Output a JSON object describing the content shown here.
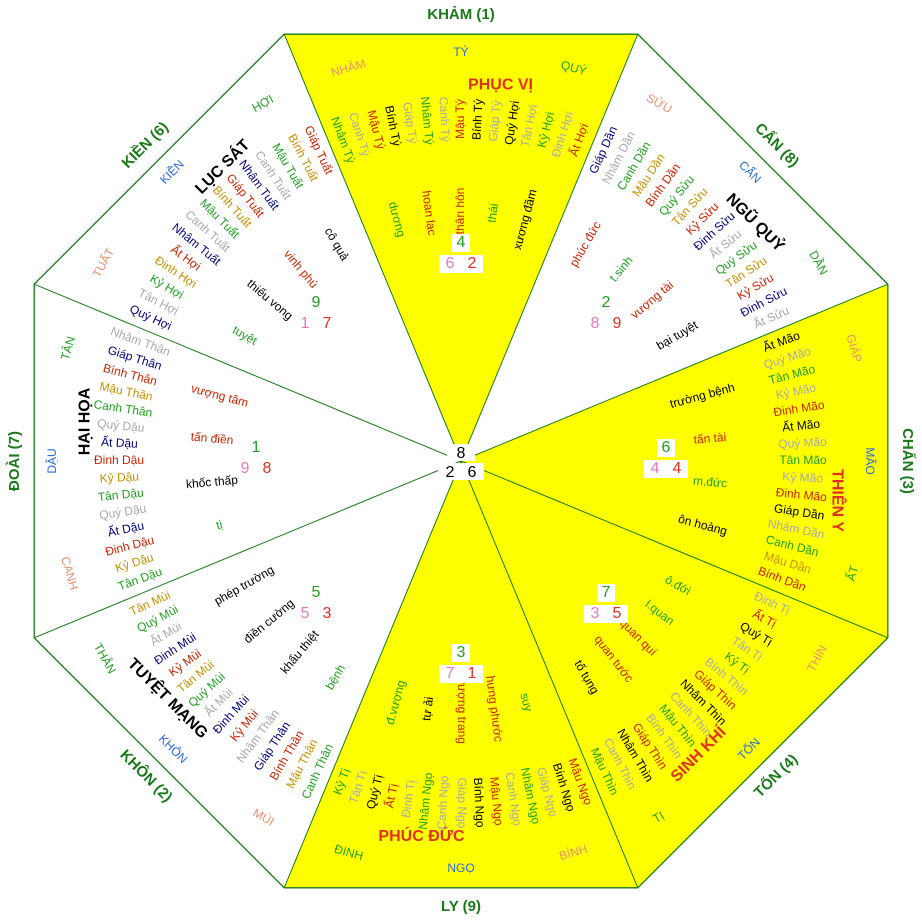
{
  "colors": {
    "yellow": "#ffff00",
    "line": "#1a7a1a",
    "trigram": "#1a7a1a",
    "pale": "#e89070",
    "blue": "#2a6ad8",
    "star": "#e0301e"
  },
  "center": {
    "top": "8",
    "bottom_left": "2",
    "bottom_right": "6"
  },
  "sectors": [
    {
      "id": "kham",
      "trigram": "KHẢM (1)",
      "yellow": true,
      "subs": [
        {
          "text": "NHÂM",
          "color": "pale"
        },
        {
          "text": "TÝ",
          "color": "blue"
        },
        {
          "text": "QUÝ",
          "color": "green"
        }
      ],
      "star": {
        "text": "PHỤC VỊ",
        "color": "red"
      },
      "stems": [
        {
          "text": "Ất Hợi",
          "color": "#cc2200"
        },
        {
          "text": "Đinh Hợi",
          "color": "#a9a9a9"
        },
        {
          "text": "Kỷ Hợi",
          "color": "#20a020"
        },
        {
          "text": "Tân Hợi",
          "color": "#a9a9a9"
        },
        {
          "text": "Quý Hợi",
          "color": "#000000"
        },
        {
          "text": "Giáp Tý",
          "color": "#a9a9a9"
        },
        {
          "text": "Bính Tý",
          "color": "#000000"
        },
        {
          "text": "Mậu Tý",
          "color": "#cc2200"
        },
        {
          "text": "Canh Tý",
          "color": "#a9a9a9"
        },
        {
          "text": "Nhâm Tý",
          "color": "#20a020"
        },
        {
          "text": "Giáp Tý",
          "color": "#a9a9a9"
        },
        {
          "text": "Bính Tý",
          "color": "#000000"
        },
        {
          "text": "Mậu Tý",
          "color": "#cc2200"
        },
        {
          "text": "Canh Tý",
          "color": "#a9a9a9"
        },
        {
          "text": "Nhâm Tý",
          "color": "#20a020"
        }
      ],
      "terms": [
        {
          "text": "xương đầm",
          "color": "#000000"
        },
        {
          "text": "thái",
          "color": "#20a020"
        },
        {
          "text": "thân hôn",
          "color": "#cc2200"
        },
        {
          "text": "hoan lạc",
          "color": "#cc2200"
        },
        {
          "text": "dương",
          "color": "#20a020"
        }
      ],
      "nums": {
        "top": "4",
        "bl": "6",
        "br": "2",
        "boxed": true
      }
    },
    {
      "id": "can",
      "trigram": "CẤN (8)",
      "yellow": false,
      "subs": [
        {
          "text": "SỬU",
          "color": "pale"
        },
        {
          "text": "CẤN",
          "color": "blue"
        },
        {
          "text": "DẦN",
          "color": "green"
        }
      ],
      "star": {
        "text": "NGŨ QUỶ",
        "color": "black"
      },
      "stems": [
        {
          "text": "Ất Sửu",
          "color": "#a9a9a9"
        },
        {
          "text": "Đinh Sửu",
          "color": "#000080"
        },
        {
          "text": "Kỷ Sửu",
          "color": "#cc2200"
        },
        {
          "text": "Tân Sửu",
          "color": "#c89000"
        },
        {
          "text": "Quý Sửu",
          "color": "#20a020"
        },
        {
          "text": "Ất Sửu",
          "color": "#a9a9a9"
        },
        {
          "text": "Đinh Sửu",
          "color": "#000080"
        },
        {
          "text": "Kỷ Sửu",
          "color": "#cc2200"
        },
        {
          "text": "Tân Sửu",
          "color": "#c89000"
        },
        {
          "text": "Quý Sửu",
          "color": "#20a020"
        },
        {
          "text": "Bính Dần",
          "color": "#cc2200"
        },
        {
          "text": "Mậu Dần",
          "color": "#c89000"
        },
        {
          "text": "Canh Dần",
          "color": "#20a020"
        },
        {
          "text": "Nhâm Dần",
          "color": "#a9a9a9"
        },
        {
          "text": "Giáp Dần",
          "color": "#000080"
        }
      ],
      "terms": [
        {
          "text": "bại tuyệt",
          "color": "#000000"
        },
        {
          "text": "vượng tài",
          "color": "#cc2200"
        },
        {
          "text": "t.sinh",
          "color": "#20a020"
        },
        {
          "text": "phúc đức",
          "color": "#cc2200"
        }
      ],
      "nums": {
        "top": "2",
        "bl": "8",
        "br": "9",
        "boxed": false
      }
    },
    {
      "id": "chan",
      "trigram": "CHẤN (3)",
      "yellow": true,
      "subs": [
        {
          "text": "GIÁP",
          "color": "pale"
        },
        {
          "text": "MÃO",
          "color": "blue"
        },
        {
          "text": "ẤT",
          "color": "green"
        }
      ],
      "star": {
        "text": "THIÊN Y",
        "color": "red"
      },
      "stems": [
        {
          "text": "Bính Dần",
          "color": "#cc2200"
        },
        {
          "text": "Mậu Dần",
          "color": "#c89000"
        },
        {
          "text": "Canh Dần",
          "color": "#20a020"
        },
        {
          "text": "Nhâm Dần",
          "color": "#a9a9a9"
        },
        {
          "text": "Giáp Dần",
          "color": "#000000"
        },
        {
          "text": "Đinh Mão",
          "color": "#cc2200"
        },
        {
          "text": "Kỷ Mão",
          "color": "#a9a9a9"
        },
        {
          "text": "Tân Mão",
          "color": "#20a020"
        },
        {
          "text": "Quý Mão",
          "color": "#a9a9a9"
        },
        {
          "text": "Ất Mão",
          "color": "#000000"
        },
        {
          "text": "Đinh Mão",
          "color": "#cc2200"
        },
        {
          "text": "Kỷ Mão",
          "color": "#a9a9a9"
        },
        {
          "text": "Tân Mão",
          "color": "#20a020"
        },
        {
          "text": "Quý Mão",
          "color": "#a9a9a9"
        },
        {
          "text": "Ất Mão",
          "color": "#000000"
        }
      ],
      "terms": [
        {
          "text": "ôn hoàng",
          "color": "#000000"
        },
        {
          "text": "m.đức",
          "color": "#20a020"
        },
        {
          "text": "tấn tài",
          "color": "#cc2200"
        },
        {
          "text": "trường bệnh",
          "color": "#000000"
        }
      ],
      "nums": {
        "top": "6",
        "bl": "4",
        "br": "4",
        "boxed": true
      }
    },
    {
      "id": "ton",
      "trigram": "TỐN (4)",
      "yellow": true,
      "subs": [
        {
          "text": "THÌN",
          "color": "pale"
        },
        {
          "text": "TỐN",
          "color": "blue"
        },
        {
          "text": "TỊ",
          "color": "green"
        }
      ],
      "star": {
        "text": "SINH KHÍ",
        "color": "red"
      },
      "stems": [
        {
          "text": "Mậu Thìn",
          "color": "#20a020"
        },
        {
          "text": "Canh Thìn",
          "color": "#a9a9a9"
        },
        {
          "text": "Nhâm Thìn",
          "color": "#000000"
        },
        {
          "text": "Giáp Thìn",
          "color": "#cc2200"
        },
        {
          "text": "Bính Thìn",
          "color": "#a9a9a9"
        },
        {
          "text": "Mậu Thìn",
          "color": "#20a020"
        },
        {
          "text": "Canh Thìn",
          "color": "#a9a9a9"
        },
        {
          "text": "Nhâm Thìn",
          "color": "#000000"
        },
        {
          "text": "Giáp Thìn",
          "color": "#cc2200"
        },
        {
          "text": "Bính Thìn",
          "color": "#a9a9a9"
        },
        {
          "text": "Kỷ Tị",
          "color": "#20a020"
        },
        {
          "text": "Tân Tị",
          "color": "#a9a9a9"
        },
        {
          "text": "Quý Tị",
          "color": "#000000"
        },
        {
          "text": "Ất Tị",
          "color": "#cc2200"
        },
        {
          "text": "Đinh Tị",
          "color": "#a9a9a9"
        }
      ],
      "terms": [
        {
          "text": "tố tụng",
          "color": "#000000"
        },
        {
          "text": "quan tước",
          "color": "#cc2200"
        },
        {
          "text": "quan quí",
          "color": "#cc2200"
        },
        {
          "text": "l.quan",
          "color": "#20a020"
        },
        {
          "text": "ô.đới",
          "color": "#20a020"
        }
      ],
      "nums": {
        "top": "7",
        "bl": "3",
        "br": "5",
        "boxed": true
      }
    },
    {
      "id": "ly",
      "trigram": "LY (9)",
      "yellow": true,
      "subs": [
        {
          "text": "BÍNH",
          "color": "pale"
        },
        {
          "text": "NGỌ",
          "color": "blue"
        },
        {
          "text": "ĐINH",
          "color": "green"
        }
      ],
      "star": {
        "text": "PHÚC ĐỨC",
        "color": "red"
      },
      "stems": [
        {
          "text": "Kỷ Tị",
          "color": "#20a020"
        },
        {
          "text": "Tân Tị",
          "color": "#a9a9a9"
        },
        {
          "text": "Quý Tị",
          "color": "#000000"
        },
        {
          "text": "Ất Tị",
          "color": "#cc2200"
        },
        {
          "text": "Đinh Tị",
          "color": "#a9a9a9"
        },
        {
          "text": "Nhâm Ngọ",
          "color": "#20a020"
        },
        {
          "text": "Canh Ngọ",
          "color": "#a9a9a9"
        },
        {
          "text": "Giáp Ngọ",
          "color": "#a9a9a9"
        },
        {
          "text": "Bính Ngọ",
          "color": "#000000"
        },
        {
          "text": "Mậu Ngọ",
          "color": "#cc2200"
        },
        {
          "text": "Canh Ngọ",
          "color": "#a9a9a9"
        },
        {
          "text": "Nhâm Ngọ",
          "color": "#20a020"
        },
        {
          "text": "Giáp Ngọ",
          "color": "#a9a9a9"
        },
        {
          "text": "Bính Ngọ",
          "color": "#000000"
        },
        {
          "text": "Mậu Ngọ",
          "color": "#cc2200"
        }
      ],
      "terms": [
        {
          "text": "đ.vượng",
          "color": "#20a020"
        },
        {
          "text": "tự ải",
          "color": "#000000"
        },
        {
          "text": "vượng trang",
          "color": "#cc2200"
        },
        {
          "text": "hưng phước",
          "color": "#cc2200"
        },
        {
          "text": "suy",
          "color": "#20a020"
        }
      ],
      "nums": {
        "top": "3",
        "bl": "7",
        "br": "1",
        "boxed": true
      }
    },
    {
      "id": "khon",
      "trigram": "KHÔN (2)",
      "yellow": false,
      "subs": [
        {
          "text": "MÙI",
          "color": "pale"
        },
        {
          "text": "KHÔN",
          "color": "blue"
        },
        {
          "text": "THÂN",
          "color": "green"
        }
      ],
      "star": {
        "text": "TUYỆT MẠNG",
        "color": "black"
      },
      "stems": [
        {
          "text": "Tân Mùi",
          "color": "#c89000"
        },
        {
          "text": "Quý Mùi",
          "color": "#20a020"
        },
        {
          "text": "Ất Mùi",
          "color": "#a9a9a9"
        },
        {
          "text": "Đinh Mùi",
          "color": "#000080"
        },
        {
          "text": "Kỷ Mùi",
          "color": "#cc2200"
        },
        {
          "text": "Tân Mùi",
          "color": "#c89000"
        },
        {
          "text": "Quý Mùi",
          "color": "#20a020"
        },
        {
          "text": "Ất Mùi",
          "color": "#a9a9a9"
        },
        {
          "text": "Đinh Mùi",
          "color": "#000080"
        },
        {
          "text": "Kỷ Mùi",
          "color": "#cc2200"
        },
        {
          "text": "Nhâm Thân",
          "color": "#a9a9a9"
        },
        {
          "text": "Giáp Thân",
          "color": "#000080"
        },
        {
          "text": "Bính Thân",
          "color": "#cc2200"
        },
        {
          "text": "Mậu Thân",
          "color": "#c89000"
        },
        {
          "text": "Canh Thân",
          "color": "#20a020"
        }
      ],
      "terms": [
        {
          "text": "phép trường",
          "color": "#000000"
        },
        {
          "text": "điền cường",
          "color": "#000000"
        },
        {
          "text": "khẩu thiệt",
          "color": "#000000"
        },
        {
          "text": "bệnh",
          "color": "#20a020"
        }
      ],
      "nums": {
        "top": "5",
        "bl": "5",
        "br": "3",
        "boxed": false
      }
    },
    {
      "id": "doai",
      "trigram": "ĐOÀI (7)",
      "yellow": false,
      "subs": [
        {
          "text": "CANH",
          "color": "pale"
        },
        {
          "text": "DẬU",
          "color": "blue"
        },
        {
          "text": "TÂN",
          "color": "green"
        }
      ],
      "star": {
        "text": "HẠI HỌA",
        "color": "black"
      },
      "stems": [
        {
          "text": "Nhâm Thân",
          "color": "#a9a9a9"
        },
        {
          "text": "Giáp Thân",
          "color": "#000080"
        },
        {
          "text": "Bính Thân",
          "color": "#cc2200"
        },
        {
          "text": "Mậu Thân",
          "color": "#c89000"
        },
        {
          "text": "Canh Thân",
          "color": "#20a020"
        },
        {
          "text": "Quý Dậu",
          "color": "#a9a9a9"
        },
        {
          "text": "Ất Dậu",
          "color": "#000080"
        },
        {
          "text": "Đinh Dậu",
          "color": "#cc2200"
        },
        {
          "text": "Kỷ Dậu",
          "color": "#c89000"
        },
        {
          "text": "Tân Dậu",
          "color": "#20a020"
        },
        {
          "text": "Quý Dậu",
          "color": "#a9a9a9"
        },
        {
          "text": "Ất Dậu",
          "color": "#000080"
        },
        {
          "text": "Đinh Dậu",
          "color": "#cc2200"
        },
        {
          "text": "Kỷ Dậu",
          "color": "#c89000"
        },
        {
          "text": "Tân Dậu",
          "color": "#20a020"
        }
      ],
      "terms": [
        {
          "text": "vượng tâm",
          "color": "#cc2200"
        },
        {
          "text": "tấn điền",
          "color": "#cc2200"
        },
        {
          "text": "khốc thấp",
          "color": "#000000"
        },
        {
          "text": "tị",
          "color": "#20a020"
        }
      ],
      "nums": {
        "top": "1",
        "bl": "9",
        "br": "8",
        "boxed": false
      }
    },
    {
      "id": "kien",
      "trigram": "KIỀN (6)",
      "yellow": false,
      "subs": [
        {
          "text": "TUẤT",
          "color": "pale"
        },
        {
          "text": "KIỀN",
          "color": "blue"
        },
        {
          "text": "HỢI",
          "color": "green"
        }
      ],
      "star": {
        "text": "LỤC SÁT",
        "color": "black"
      },
      "stems": [
        {
          "text": "Giáp Tuất",
          "color": "#cc2200"
        },
        {
          "text": "Bính Tuất",
          "color": "#c89000"
        },
        {
          "text": "Mậu Tuất",
          "color": "#20a020"
        },
        {
          "text": "Canh Tuất",
          "color": "#a9a9a9"
        },
        {
          "text": "Nhâm Tuất",
          "color": "#000080"
        },
        {
          "text": "Giáp Tuất",
          "color": "#cc2200"
        },
        {
          "text": "Bính Tuất",
          "color": "#c89000"
        },
        {
          "text": "Mậu Tuất",
          "color": "#20a020"
        },
        {
          "text": "Canh Tuất",
          "color": "#a9a9a9"
        },
        {
          "text": "Nhâm Tuất",
          "color": "#000080"
        },
        {
          "text": "Ất Hợi",
          "color": "#cc2200"
        },
        {
          "text": "Đinh Hợi",
          "color": "#c89000"
        },
        {
          "text": "Kỷ Hợi",
          "color": "#20a020"
        },
        {
          "text": "Tân Hợi",
          "color": "#a9a9a9"
        },
        {
          "text": "Quý Hợi",
          "color": "#000080"
        }
      ],
      "terms": [
        {
          "text": "cô quả",
          "color": "#000000"
        },
        {
          "text": "vinh phú",
          "color": "#cc2200"
        },
        {
          "text": "thiếu vong",
          "color": "#000000"
        },
        {
          "text": "tuyệt",
          "color": "#20a020"
        }
      ],
      "nums": {
        "top": "9",
        "bl": "1",
        "br": "7",
        "boxed": false
      }
    }
  ]
}
